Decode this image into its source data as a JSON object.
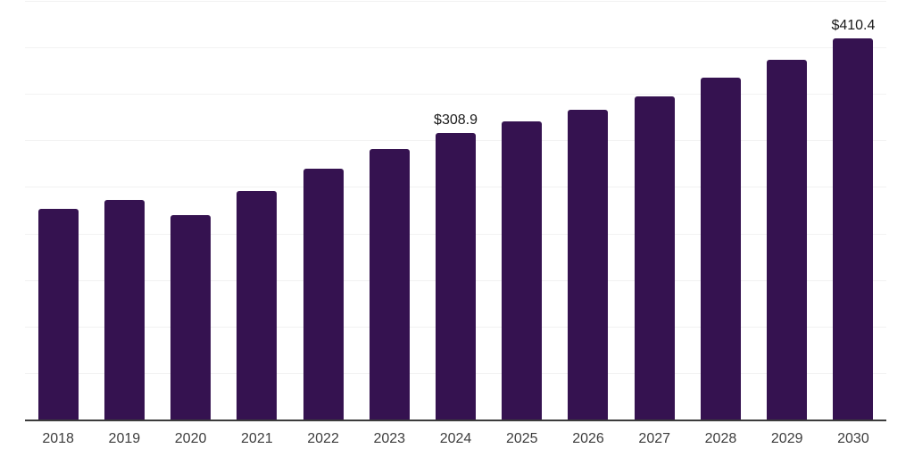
{
  "chart_data": {
    "type": "bar",
    "title": "",
    "xlabel": "",
    "ylabel": "",
    "categories": [
      "2018",
      "2019",
      "2020",
      "2021",
      "2022",
      "2023",
      "2024",
      "2025",
      "2026",
      "2027",
      "2028",
      "2029",
      "2030"
    ],
    "values": [
      227,
      237,
      221,
      247,
      271,
      292,
      308.9,
      321,
      334,
      348,
      368,
      388,
      410.4
    ],
    "data_labels": [
      "",
      "",
      "",
      "",
      "",
      "",
      "$308.9",
      "",
      "",
      "",
      "",
      "",
      "$410.4"
    ],
    "ylim": [
      0,
      450
    ],
    "grid_step": 50,
    "grid": true,
    "legend": false,
    "y_tick_labels_visible": false,
    "colors": {
      "bar": "#351250",
      "gridline": "#f2f2f2",
      "axis": "#3c3c3c",
      "data_label": "#1a1a1a",
      "tick_label": "#3d3d3d",
      "background": "#ffffff"
    }
  }
}
